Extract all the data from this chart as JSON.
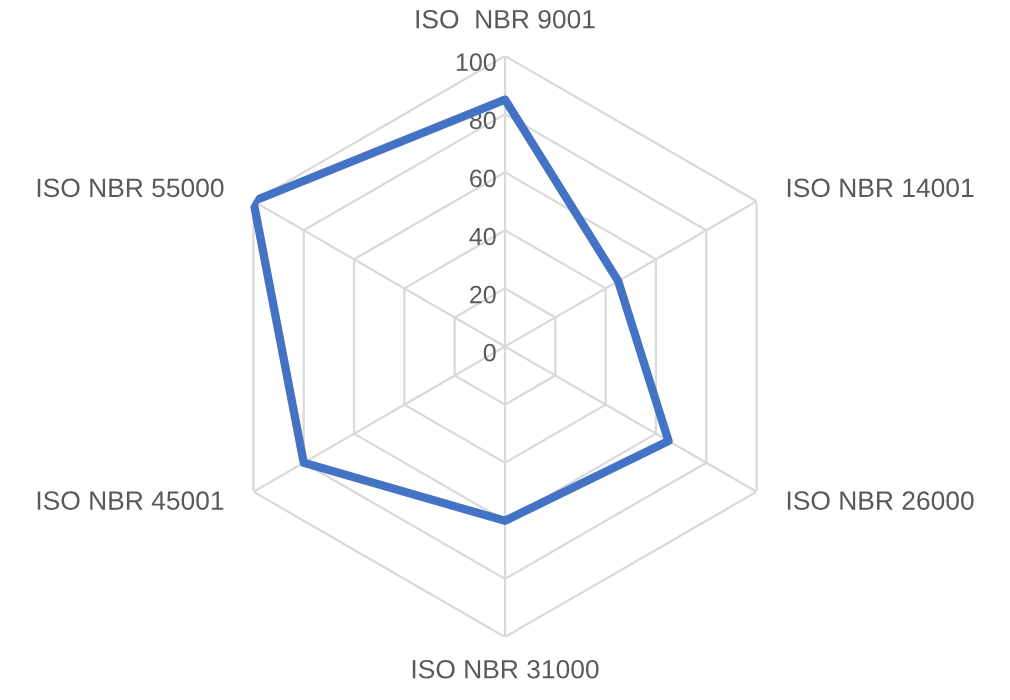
{
  "chart_data": {
    "type": "radar",
    "categories": [
      "ISO  NBR 9001",
      "ISO NBR 14001",
      "ISO NBR 26000",
      "ISO NBR 31000",
      "ISO NBR 45001",
      "ISO NBR 55000"
    ],
    "series": [
      {
        "color": "#4472c4",
        "values": [
          85,
          45,
          65,
          60,
          80,
          100
        ]
      }
    ],
    "ylim": [
      0,
      100
    ],
    "yticks": [
      0,
      20,
      40,
      60,
      80,
      100
    ],
    "grid": true
  }
}
